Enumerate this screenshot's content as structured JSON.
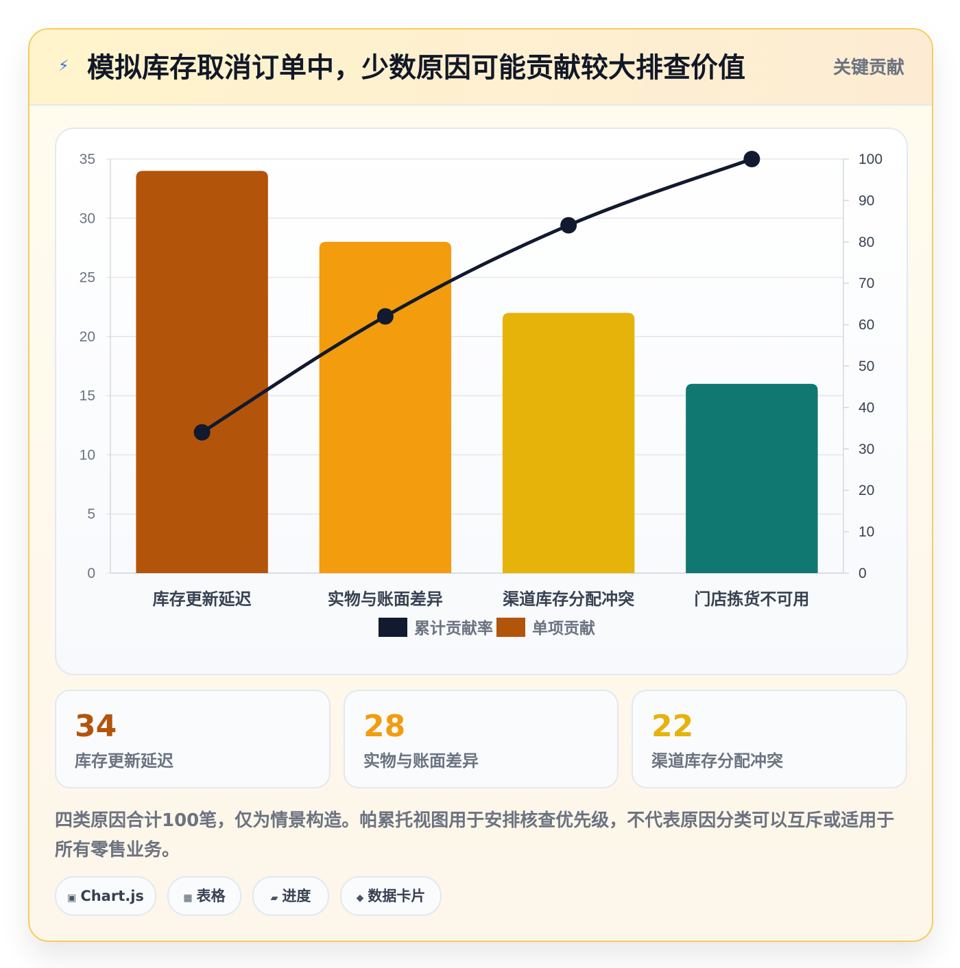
{
  "header": {
    "icon": "lightning-icon",
    "title": "模拟库存取消订单中，少数原因可能贡献较大排查价值",
    "badge": "关键贡献"
  },
  "chart_data": {
    "type": "bar",
    "categories": [
      "库存更新延迟",
      "实物与账面差异",
      "渠道库存分配冲突",
      "门店拣货不可用"
    ],
    "series": [
      {
        "name": "单项贡献",
        "type": "bar",
        "values": [
          34,
          28,
          22,
          16
        ],
        "colors": [
          "#b3540b",
          "#f29c0e",
          "#e6b30b",
          "#107870"
        ]
      },
      {
        "name": "累计贡献率",
        "type": "line",
        "axis": "right",
        "values": [
          34,
          62,
          84,
          100
        ],
        "color": "#111a2e"
      }
    ],
    "y_left": {
      "min": 0,
      "max": 35,
      "ticks": [
        "0",
        "5",
        "10",
        "15",
        "20",
        "25",
        "30",
        "35"
      ]
    },
    "y_right": {
      "min": 0,
      "max": 100,
      "ticks": [
        "0",
        "10",
        "20",
        "30",
        "40",
        "50",
        "60",
        "70",
        "80",
        "90",
        "100"
      ]
    },
    "legend": [
      {
        "label": "累计贡献率",
        "color": "#111a2e"
      },
      {
        "label": "单项贡献",
        "color": "#b3540b"
      }
    ],
    "legend_position": "bottom",
    "grid": true
  },
  "stats": [
    {
      "value": "34",
      "label": "库存更新延迟",
      "color": "#b3540b"
    },
    {
      "value": "28",
      "label": "实物与账面差异",
      "color": "#f29c0e"
    },
    {
      "value": "22",
      "label": "渠道库存分配冲突",
      "color": "#e6b30b"
    }
  ],
  "note": "四类原因合计100笔，仅为情景构造。帕累托视图用于安排核查优先级，不代表原因分类可以互斥或适用于所有零售业务。",
  "chips": [
    {
      "icon": "▣",
      "label": "Chart.js"
    },
    {
      "icon": "▦",
      "label": "表格"
    },
    {
      "icon": "▰",
      "label": "进度"
    },
    {
      "icon": "◆",
      "label": "数据卡片"
    }
  ]
}
